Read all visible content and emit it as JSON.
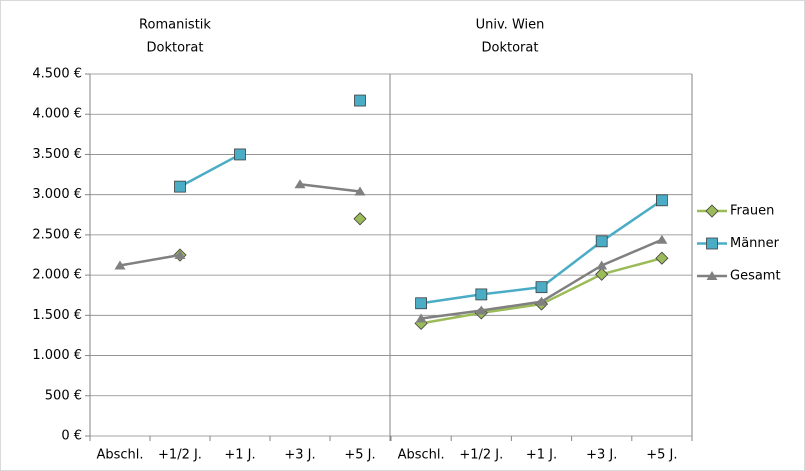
{
  "chart_data": [
    {
      "type": "line",
      "title": "Romanistik",
      "subtitle": "Doktorat",
      "categories": [
        "Abschl.",
        "+1/2 J.",
        "+1 J.",
        "+3 J.",
        "+5 J."
      ],
      "ylim": [
        0,
        4500
      ],
      "yticks": [
        {
          "value": 0,
          "label": "0 €"
        },
        {
          "value": 500,
          "label": "500 €"
        },
        {
          "value": 1000,
          "label": "1.000 €"
        },
        {
          "value": 1500,
          "label": "1.500 €"
        },
        {
          "value": 2000,
          "label": "2.000 €"
        },
        {
          "value": 2500,
          "label": "2.500 €"
        },
        {
          "value": 3000,
          "label": "3.000 €"
        },
        {
          "value": 3500,
          "label": "3.500 €"
        },
        {
          "value": 4000,
          "label": "4.000 €"
        },
        {
          "value": 4500,
          "label": "4.500 €"
        }
      ],
      "grid": true,
      "series": [
        {
          "color": "#9bbb59",
          "marker": "diamond",
          "values": [
            null,
            2250,
            null,
            null,
            2700
          ]
        },
        {
          "color": "#4bacc6",
          "marker": "square",
          "values": [
            null,
            3100,
            3500,
            null,
            4170
          ]
        },
        {
          "color": "#808080",
          "marker": "triangle",
          "values": [
            2120,
            2250,
            null,
            3130,
            3040
          ]
        }
      ]
    },
    {
      "type": "line",
      "title": "Univ. Wien",
      "subtitle": "Doktorat",
      "categories": [
        "Abschl.",
        "+1/2 J.",
        "+1 J.",
        "+3 J.",
        "+5 J."
      ],
      "ylim": [
        0,
        4500
      ],
      "legend": "right",
      "series": [
        {
          "name": "Frauen",
          "color": "#9bbb59",
          "marker": "diamond",
          "values": [
            1400,
            1530,
            1640,
            2010,
            2210
          ]
        },
        {
          "name": "Männer",
          "color": "#4bacc6",
          "marker": "square",
          "values": [
            1650,
            1760,
            1850,
            2420,
            2930
          ]
        },
        {
          "name": "Gesamt",
          "color": "#808080",
          "marker": "triangle",
          "values": [
            1460,
            1560,
            1670,
            2120,
            2440
          ]
        }
      ]
    }
  ]
}
